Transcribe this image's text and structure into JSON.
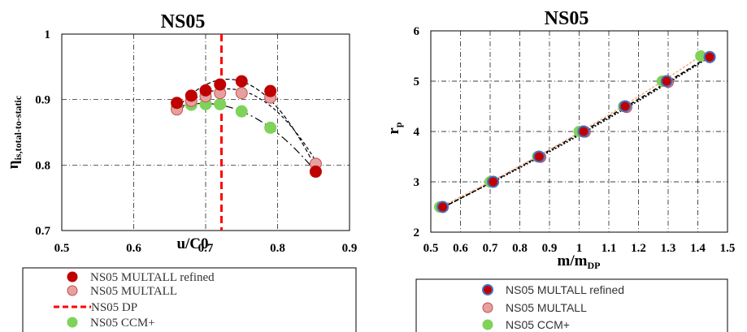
{
  "colors": {
    "refined": "#c00000",
    "multall": "#e6a0a0",
    "multall_stroke": "#c05050",
    "ccm": "#7fd25a",
    "dp_line": "#ff0000",
    "refined_ring": "#4472c4",
    "fit_orange": "#f4b183"
  },
  "chart_data": [
    {
      "type": "scatter",
      "title": "NS05",
      "xlabel": "u/C0",
      "ylabel_main": "η",
      "ylabel_sub": "is,total-to-static",
      "xlim": [
        0.5,
        0.9
      ],
      "ylim": [
        0.7,
        1.0
      ],
      "xticks": [
        "0.5",
        "0.6",
        "0.7",
        "0.8",
        "0.9"
      ],
      "yticks": [
        "0.7",
        "0.8",
        "0.9",
        "1"
      ],
      "grid": true,
      "legend_position": "bottom",
      "dp_line_x": 0.722,
      "series": [
        {
          "name": "NS05 MULTALL refined",
          "x": [
            0.66,
            0.68,
            0.7,
            0.72,
            0.75,
            0.79,
            0.853
          ],
          "y": [
            0.895,
            0.906,
            0.914,
            0.923,
            0.928,
            0.913,
            0.79
          ]
        },
        {
          "name": "NS05 MULTALL",
          "x": [
            0.66,
            0.68,
            0.7,
            0.72,
            0.75,
            0.79,
            0.853
          ],
          "y": [
            0.885,
            0.898,
            0.905,
            0.91,
            0.91,
            0.903,
            0.802
          ]
        },
        {
          "name": "NS05 DP"
        },
        {
          "name": "NS05 CCM+",
          "x": [
            0.66,
            0.68,
            0.7,
            0.72,
            0.75,
            0.79,
            0.853
          ],
          "y": [
            0.889,
            0.892,
            0.893,
            0.893,
            0.882,
            0.857,
            0.79
          ]
        }
      ]
    },
    {
      "type": "scatter",
      "title": "NS05",
      "xlabel_main": "m/m",
      "xlabel_sub": "DP",
      "ylabel_main": "r",
      "ylabel_sub": "p",
      "xlim": [
        0.5,
        1.5
      ],
      "ylim": [
        2,
        6
      ],
      "xticks": [
        "0.5",
        "0.6",
        "0.7",
        "0.8",
        "0.9",
        "1",
        "1.1",
        "1.2",
        "1.3",
        "1.4",
        "1.5"
      ],
      "yticks": [
        "2",
        "3",
        "4",
        "5",
        "6"
      ],
      "grid": true,
      "legend_position": "bottom",
      "series": [
        {
          "name": "NS05 MULTALL refined",
          "x": [
            0.54,
            0.71,
            0.865,
            1.015,
            1.155,
            1.295,
            1.44
          ],
          "y": [
            2.5,
            3.0,
            3.5,
            4.0,
            4.5,
            5.0,
            5.48
          ]
        },
        {
          "name": "NS05 MULTALL",
          "x": [
            0.54,
            0.71,
            0.87,
            1.02,
            1.16,
            1.3,
            1.44
          ],
          "y": [
            2.5,
            3.0,
            3.49,
            3.99,
            4.48,
            4.98,
            5.47
          ]
        },
        {
          "name": "NS05 CCM+",
          "x": [
            0.53,
            0.7,
            0.86,
            1.0,
            1.15,
            1.28,
            1.41
          ],
          "y": [
            2.5,
            3.0,
            3.5,
            4.0,
            4.5,
            5.0,
            5.5
          ]
        }
      ]
    }
  ]
}
